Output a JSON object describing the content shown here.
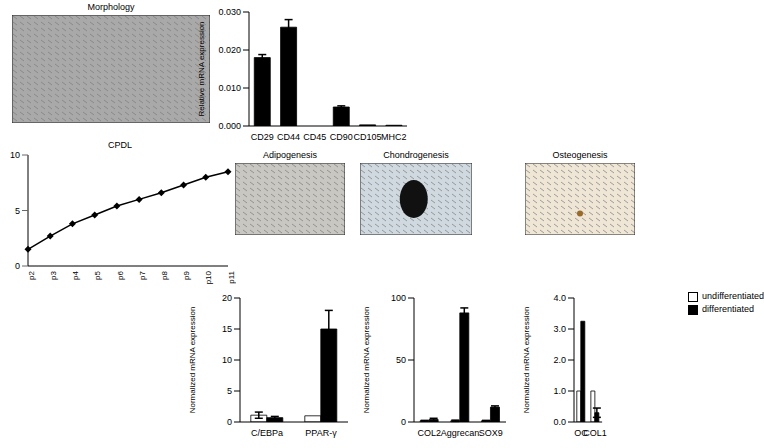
{
  "images": [
    {
      "title": "Morphology"
    },
    {
      "title": "Adipogenesis"
    },
    {
      "title": "Chondrogenesis"
    },
    {
      "title": "Osteogenesis"
    }
  ],
  "chart_data": [
    {
      "type": "bar",
      "ylabel": "Relative mRNA expression",
      "categories": [
        "CD29",
        "CD44",
        "CD45",
        "CD90",
        "CD105",
        "MHC2"
      ],
      "values": [
        0.018,
        0.026,
        0.0,
        0.005,
        0.0003,
        0.0002
      ],
      "errors": [
        0.0008,
        0.002,
        0,
        0.0003,
        0,
        0
      ],
      "color": "#000000",
      "ylim": [
        0,
        0.03
      ],
      "yticks": [
        {
          "value": 0,
          "label": "0.000"
        },
        {
          "value": 0.01,
          "label": "0.010"
        },
        {
          "value": 0.02,
          "label": "0.020"
        },
        {
          "value": 0.03,
          "label": "0.030"
        }
      ]
    },
    {
      "type": "line",
      "title": "CPDL",
      "categories": [
        "p2",
        "p3",
        "p4",
        "p5",
        "p6",
        "p7",
        "p8",
        "p9",
        "p10",
        "p11"
      ],
      "values": [
        1.5,
        2.7,
        3.8,
        4.6,
        5.4,
        6.0,
        6.6,
        7.3,
        8.0,
        8.5
      ],
      "color": "#000000",
      "marker": "diamond",
      "ylim": [
        0,
        10
      ],
      "yticks": [
        0,
        5,
        10
      ]
    },
    {
      "type": "bar",
      "ylabel": "Normalized mRNA expression",
      "categories": [
        "C/EBPa",
        "PPAR-γ"
      ],
      "series": [
        {
          "name": "undifferentiated",
          "color": "#ffffff",
          "values": [
            1.1,
            1.0
          ],
          "errors": [
            0.5,
            0
          ]
        },
        {
          "name": "differentiated",
          "color": "#000000",
          "values": [
            0.7,
            15
          ],
          "errors": [
            0.2,
            3
          ]
        }
      ],
      "ylim": [
        0,
        20
      ],
      "yticks": [
        0,
        5,
        10,
        15,
        20
      ]
    },
    {
      "type": "bar",
      "ylabel": "Normalized mRNA expression",
      "categories": [
        "COL2",
        "Aggrecan",
        "SOX9"
      ],
      "series": [
        {
          "name": "undifferentiated",
          "color": "#ffffff",
          "values": [
            1,
            1,
            1
          ],
          "errors": [
            0.3,
            0.5,
            0.3
          ]
        },
        {
          "name": "differentiated",
          "color": "#000000",
          "values": [
            2,
            88,
            12
          ],
          "errors": [
            1,
            4,
            1
          ]
        }
      ],
      "ylim": [
        0,
        100
      ],
      "yticks": [
        0,
        50,
        100
      ]
    },
    {
      "type": "bar",
      "ylabel": "Normalized mRNA expression",
      "categories": [
        "OC",
        "COL1"
      ],
      "series": [
        {
          "name": "undifferentiated",
          "color": "#ffffff",
          "values": [
            1.0,
            1.0
          ],
          "errors": [
            0,
            0
          ]
        },
        {
          "name": "differentiated",
          "color": "#000000",
          "values": [
            3.25,
            0.3
          ],
          "errors": [
            0,
            0.15
          ]
        }
      ],
      "ylim": [
        0,
        4
      ],
      "yticks": [
        {
          "value": 0,
          "label": "0.0"
        },
        {
          "value": 1,
          "label": "1.0"
        },
        {
          "value": 2,
          "label": "2.0"
        },
        {
          "value": 3,
          "label": "3.0"
        },
        {
          "value": 4,
          "label": "4.0"
        }
      ],
      "legend": "top-right"
    }
  ]
}
